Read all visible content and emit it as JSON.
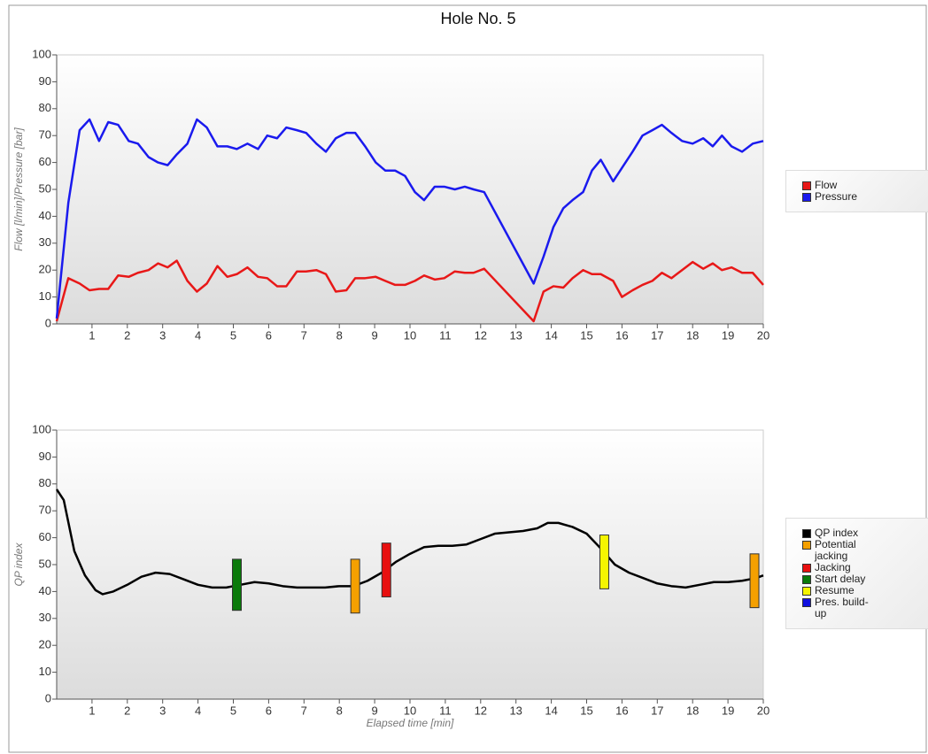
{
  "title": "Hole No. 5",
  "chart_data": [
    {
      "type": "line",
      "y_label": "Flow [l/min]/Pressure [bar]",
      "x": [
        0,
        0.33,
        0.65,
        0.93,
        1.2,
        1.46,
        1.74,
        2.04,
        2.3,
        2.6,
        2.87,
        3.14,
        3.4,
        3.7,
        3.97,
        4.25,
        4.55,
        4.83,
        5.1,
        5.4,
        5.7,
        5.96,
        6.24,
        6.5,
        6.8,
        7.06,
        7.35,
        7.62,
        7.9,
        8.2,
        8.45,
        8.73,
        9.03,
        9.3,
        9.58,
        9.86,
        10.14,
        10.4,
        10.7,
        10.97,
        11.27,
        11.55,
        11.8,
        12.1,
        13.5,
        13.78,
        14.06,
        14.34,
        14.6,
        14.9,
        15.15,
        15.4,
        15.75,
        16,
        16.3,
        16.58,
        16.86,
        17.13,
        17.4,
        17.7,
        18,
        18.3,
        18.57,
        18.83,
        19.1,
        19.4,
        19.7,
        20
      ],
      "series": [
        {
          "name": "Flow",
          "color": "#e81818",
          "values": [
            1,
            17,
            15,
            12.5,
            13,
            13,
            18,
            17.5,
            19,
            20,
            22.5,
            21,
            23.5,
            16,
            12,
            15,
            21.5,
            17.5,
            18.5,
            21,
            17.5,
            17,
            14,
            14,
            19.5,
            19.5,
            20,
            18.5,
            12,
            12.5,
            17,
            17,
            17.5,
            16,
            14.5,
            14.5,
            16,
            18,
            16.5,
            17,
            19.5,
            19,
            19,
            20.5,
            1,
            12,
            14,
            13.5,
            17,
            20,
            18.5,
            18.5,
            16,
            10,
            12.5,
            14.5,
            16,
            19,
            17,
            20,
            23,
            20.5,
            22.5,
            20,
            21,
            19,
            19,
            14.5
          ]
        },
        {
          "name": "Pressure",
          "color": "#1a1aee",
          "values": [
            2,
            45,
            72,
            76,
            68,
            75,
            74,
            68,
            67,
            62,
            60,
            59,
            63,
            67,
            76,
            73,
            66,
            66,
            65,
            67,
            65,
            70,
            69,
            73,
            72,
            71,
            67,
            64,
            69,
            71,
            71,
            66,
            60,
            57,
            57,
            55,
            49,
            46,
            51,
            51,
            50,
            51,
            50,
            49,
            15,
            25,
            36,
            43,
            46,
            49,
            57,
            61,
            53,
            58,
            64,
            70,
            72,
            74,
            71,
            68,
            67,
            69,
            66,
            70,
            66,
            64,
            67,
            68
          ]
        }
      ],
      "xlim": [
        0,
        20
      ],
      "xticks": [
        1,
        2,
        3,
        4,
        5,
        6,
        7,
        8,
        9,
        10,
        11,
        12,
        13,
        14,
        15,
        16,
        17,
        18,
        19,
        20
      ],
      "ylim": [
        0,
        100
      ],
      "yticks": [
        0,
        10,
        20,
        30,
        40,
        50,
        60,
        70,
        80,
        90,
        100
      ]
    },
    {
      "type": "line",
      "x_label": "Elapsed time [min]",
      "y_label": "QP index",
      "series": [
        {
          "name": "QP index",
          "color": "#000000",
          "x": [
            0,
            0.2,
            0.5,
            0.8,
            1.1,
            1.3,
            1.6,
            2,
            2.4,
            2.8,
            3.2,
            3.6,
            4,
            4.4,
            4.8,
            5.2,
            5.6,
            6,
            6.4,
            6.8,
            7.2,
            7.6,
            8,
            8.4,
            8.8,
            9.2,
            9.6,
            10,
            10.4,
            10.8,
            11.2,
            11.6,
            12,
            12.4,
            12.8,
            13.2,
            13.6,
            13.9,
            14.2,
            14.6,
            15,
            15.4,
            15.8,
            16.2,
            16.6,
            17,
            17.4,
            17.8,
            18.2,
            18.6,
            19,
            19.4,
            19.8,
            20
          ],
          "values": [
            78,
            74,
            55,
            46,
            40.5,
            39,
            40,
            42.5,
            45.5,
            47,
            46.5,
            44.5,
            42.5,
            41.5,
            41.5,
            42.5,
            43.5,
            43,
            42,
            41.5,
            41.5,
            41.5,
            42,
            42,
            44,
            47,
            51,
            54,
            56.5,
            57,
            57,
            57.5,
            59.5,
            61.5,
            62,
            62.5,
            63.5,
            65.5,
            65.5,
            64,
            61.5,
            56,
            50,
            47,
            45,
            43,
            42,
            41.5,
            42.5,
            43.5,
            43.5,
            44,
            45,
            46
          ]
        },
        {
          "name": "Potential jacking",
          "color": "#f5a000",
          "x": [
            8.45,
            19.75
          ],
          "low": [
            32,
            34
          ],
          "high": [
            52,
            54
          ]
        },
        {
          "name": "Jacking",
          "color": "#e81010",
          "x": [
            9.33
          ],
          "low": [
            38
          ],
          "high": [
            58
          ]
        },
        {
          "name": "Start delay",
          "color": "#0a7a0a",
          "x": [
            5.1
          ],
          "low": [
            33
          ],
          "high": [
            52
          ]
        },
        {
          "name": "Resume",
          "color": "#f5f500",
          "x": [
            15.5
          ],
          "low": [
            41
          ],
          "high": [
            61
          ]
        },
        {
          "name": "Pres. build-up",
          "color": "#1010e0",
          "x": [],
          "low": [],
          "high": []
        }
      ],
      "xlim": [
        0,
        20
      ],
      "xticks": [
        1,
        2,
        3,
        4,
        5,
        6,
        7,
        8,
        9,
        10,
        11,
        12,
        13,
        14,
        15,
        16,
        17,
        18,
        19,
        20
      ],
      "ylim": [
        0,
        100
      ],
      "yticks": [
        0,
        10,
        20,
        30,
        40,
        50,
        60,
        70,
        80,
        90,
        100
      ]
    }
  ]
}
